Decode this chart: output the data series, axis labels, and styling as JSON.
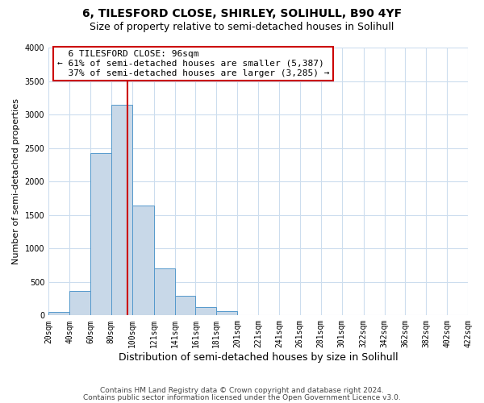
{
  "title": "6, TILESFORD CLOSE, SHIRLEY, SOLIHULL, B90 4YF",
  "subtitle": "Size of property relative to semi-detached houses in Solihull",
  "xlabel": "Distribution of semi-detached houses by size in Solihull",
  "ylabel": "Number of semi-detached properties",
  "bin_edges": [
    20,
    40,
    60,
    80,
    100,
    121,
    141,
    161,
    181,
    201,
    221,
    241,
    261,
    281,
    301,
    322,
    342,
    362,
    382,
    402,
    422
  ],
  "bin_heights": [
    50,
    370,
    2420,
    3150,
    1640,
    700,
    290,
    130,
    60,
    0,
    0,
    0,
    0,
    0,
    0,
    0,
    0,
    0,
    0,
    0
  ],
  "bar_color": "#c8d8e8",
  "bar_edgecolor": "#5599cc",
  "vline_color": "#cc0000",
  "vline_x": 96,
  "annotation_title": "6 TILESFORD CLOSE: 96sqm",
  "annotation_line1": "← 61% of semi-detached houses are smaller (5,387)",
  "annotation_line2": "37% of semi-detached houses are larger (3,285) →",
  "annotation_box_color": "#ffffff",
  "annotation_box_edgecolor": "#cc0000",
  "ylim": [
    0,
    4000
  ],
  "yticks": [
    0,
    500,
    1000,
    1500,
    2000,
    2500,
    3000,
    3500,
    4000
  ],
  "footer_line1": "Contains HM Land Registry data © Crown copyright and database right 2024.",
  "footer_line2": "Contains public sector information licensed under the Open Government Licence v3.0.",
  "background_color": "#ffffff",
  "grid_color": "#ccddee",
  "title_fontsize": 10,
  "subtitle_fontsize": 9,
  "ylabel_fontsize": 8,
  "xlabel_fontsize": 9,
  "tick_fontsize": 7,
  "annotation_fontsize": 8,
  "footer_fontsize": 6.5
}
